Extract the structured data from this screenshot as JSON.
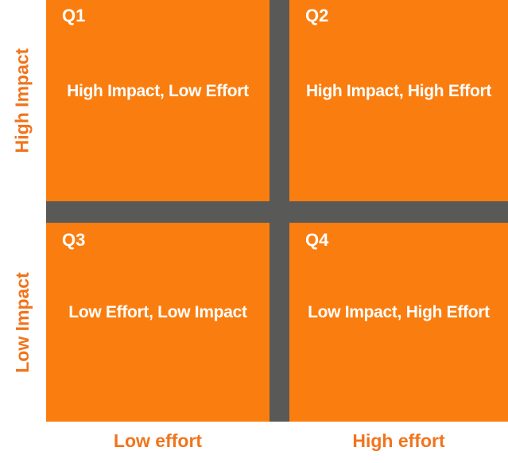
{
  "colors": {
    "quadrant_fill": "#FA7D0F",
    "divider": "#595A58",
    "quadrant_text": "#FFFFFF",
    "axis_text": "#F1741C",
    "background": "#FFFFFF"
  },
  "quadrants": [
    {
      "tag": "Q1",
      "label": "High Impact, Low Effort"
    },
    {
      "tag": "Q2",
      "label": "High Impact, High Effort"
    },
    {
      "tag": "Q3",
      "label": "Low Effort, Low Impact"
    },
    {
      "tag": "Q4",
      "label": "Low Impact, High Effort"
    }
  ],
  "axes": {
    "y_top": "High Impact",
    "y_bottom": "Low Impact",
    "x_left": "Low effort",
    "x_right": "High effort"
  }
}
